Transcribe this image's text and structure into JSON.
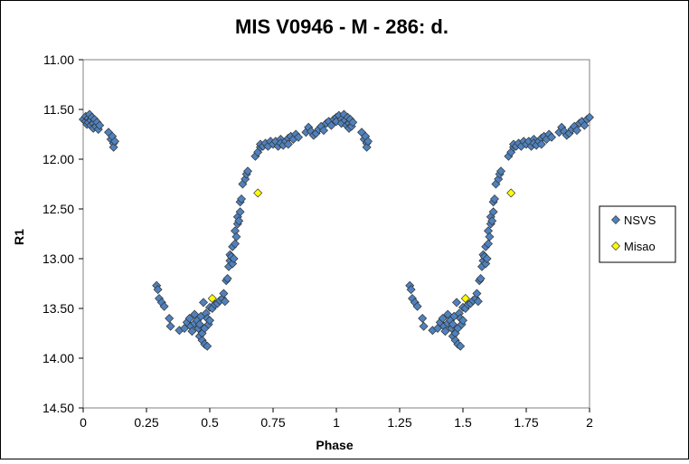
{
  "chart_data": {
    "type": "scatter",
    "title": "MIS V0946 - M - 286: d.",
    "xlabel": "Phase",
    "ylabel": "R1",
    "xlim": [
      0,
      2
    ],
    "ylim": [
      11.0,
      14.5
    ],
    "y_inverted": true,
    "x_ticks": [
      "0",
      "0.25",
      "0.5",
      "0.75",
      "1",
      "1.25",
      "1.5",
      "1.75",
      "2"
    ],
    "y_ticks": [
      "11.00",
      "11.50",
      "12.00",
      "12.50",
      "13.00",
      "13.50",
      "14.00",
      "14.50"
    ],
    "grid": false,
    "legend_position": "right",
    "colors": {
      "nsvs": "#4f81bd",
      "misao": "#ffff00",
      "frame": "#808080",
      "marker_edge": "#333333"
    },
    "series": [
      {
        "name": "NSVS",
        "points": [
          [
            0.0,
            11.6
          ],
          [
            0.01,
            11.62
          ],
          [
            0.01,
            11.57
          ],
          [
            0.015,
            11.65
          ],
          [
            0.02,
            11.59
          ],
          [
            0.02,
            11.63
          ],
          [
            0.025,
            11.55
          ],
          [
            0.03,
            11.61
          ],
          [
            0.03,
            11.66
          ],
          [
            0.035,
            11.58
          ],
          [
            0.04,
            11.64
          ],
          [
            0.04,
            11.69
          ],
          [
            0.045,
            11.6
          ],
          [
            0.05,
            11.67
          ],
          [
            0.055,
            11.63
          ],
          [
            0.06,
            11.7
          ],
          [
            0.065,
            11.66
          ],
          [
            0.1,
            11.73
          ],
          [
            0.11,
            11.8
          ],
          [
            0.115,
            11.77
          ],
          [
            0.12,
            11.84
          ],
          [
            0.12,
            11.88
          ],
          [
            0.125,
            11.82
          ],
          [
            0.29,
            13.27
          ],
          [
            0.295,
            13.31
          ],
          [
            0.3,
            13.4
          ],
          [
            0.31,
            13.44
          ],
          [
            0.32,
            13.48
          ],
          [
            0.34,
            13.6
          ],
          [
            0.345,
            13.68
          ],
          [
            0.38,
            13.72
          ],
          [
            0.4,
            13.7
          ],
          [
            0.41,
            13.64
          ],
          [
            0.42,
            13.6
          ],
          [
            0.425,
            13.68
          ],
          [
            0.43,
            13.73
          ],
          [
            0.44,
            13.65
          ],
          [
            0.44,
            13.56
          ],
          [
            0.45,
            13.62
          ],
          [
            0.455,
            13.7
          ],
          [
            0.46,
            13.66
          ],
          [
            0.46,
            13.78
          ],
          [
            0.465,
            13.58
          ],
          [
            0.47,
            13.75
          ],
          [
            0.47,
            13.82
          ],
          [
            0.475,
            13.44
          ],
          [
            0.48,
            13.7
          ],
          [
            0.48,
            13.86
          ],
          [
            0.485,
            13.55
          ],
          [
            0.49,
            13.6
          ],
          [
            0.49,
            13.88
          ],
          [
            0.495,
            13.66
          ],
          [
            0.5,
            13.49
          ],
          [
            0.5,
            13.62
          ],
          [
            0.51,
            13.5
          ],
          [
            0.52,
            13.46
          ],
          [
            0.53,
            13.45
          ],
          [
            0.54,
            13.42
          ],
          [
            0.55,
            13.4
          ],
          [
            0.555,
            13.35
          ],
          [
            0.56,
            13.43
          ],
          [
            0.565,
            13.22
          ],
          [
            0.57,
            13.2
          ],
          [
            0.575,
            13.08
          ],
          [
            0.58,
            13.02
          ],
          [
            0.58,
            12.96
          ],
          [
            0.585,
            12.98
          ],
          [
            0.59,
            13.05
          ],
          [
            0.59,
            12.88
          ],
          [
            0.595,
            13.0
          ],
          [
            0.6,
            12.85
          ],
          [
            0.6,
            12.72
          ],
          [
            0.605,
            12.78
          ],
          [
            0.61,
            12.65
          ],
          [
            0.61,
            12.58
          ],
          [
            0.615,
            12.62
          ],
          [
            0.62,
            12.53
          ],
          [
            0.62,
            12.43
          ],
          [
            0.625,
            12.4
          ],
          [
            0.63,
            12.25
          ],
          [
            0.64,
            12.2
          ],
          [
            0.645,
            12.15
          ],
          [
            0.65,
            12.12
          ],
          [
            0.68,
            11.97
          ],
          [
            0.69,
            11.93
          ],
          [
            0.7,
            11.88
          ],
          [
            0.7,
            11.85
          ],
          [
            0.71,
            11.87
          ],
          [
            0.72,
            11.84
          ],
          [
            0.73,
            11.87
          ],
          [
            0.74,
            11.82
          ],
          [
            0.75,
            11.85
          ],
          [
            0.76,
            11.82
          ],
          [
            0.77,
            11.87
          ],
          [
            0.78,
            11.8
          ],
          [
            0.78,
            11.84
          ],
          [
            0.79,
            11.86
          ],
          [
            0.8,
            11.82
          ],
          [
            0.81,
            11.79
          ],
          [
            0.81,
            11.85
          ],
          [
            0.82,
            11.77
          ],
          [
            0.83,
            11.8
          ],
          [
            0.84,
            11.75
          ],
          [
            0.85,
            11.78
          ],
          [
            0.88,
            11.73
          ],
          [
            0.89,
            11.68
          ],
          [
            0.9,
            11.72
          ],
          [
            0.91,
            11.76
          ],
          [
            0.92,
            11.74
          ],
          [
            0.93,
            11.7
          ],
          [
            0.94,
            11.67
          ],
          [
            0.95,
            11.71
          ],
          [
            0.96,
            11.64
          ],
          [
            0.97,
            11.62
          ],
          [
            0.98,
            11.66
          ],
          [
            0.99,
            11.6
          ],
          [
            1.0,
            11.58
          ],
          [
            1.0,
            11.62
          ],
          [
            1.01,
            11.56
          ],
          [
            1.02,
            11.6
          ],
          [
            1.02,
            11.64
          ],
          [
            1.03,
            11.55
          ],
          [
            1.035,
            11.61
          ],
          [
            1.04,
            11.66
          ],
          [
            1.045,
            11.58
          ],
          [
            1.05,
            11.64
          ],
          [
            1.05,
            11.69
          ],
          [
            1.055,
            11.6
          ],
          [
            1.06,
            11.67
          ],
          [
            1.065,
            11.63
          ],
          [
            1.1,
            11.73
          ],
          [
            1.11,
            11.8
          ],
          [
            1.115,
            11.77
          ],
          [
            1.12,
            11.84
          ],
          [
            1.12,
            11.88
          ],
          [
            1.125,
            11.82
          ],
          [
            1.29,
            13.27
          ],
          [
            1.295,
            13.31
          ],
          [
            1.3,
            13.4
          ],
          [
            1.31,
            13.44
          ],
          [
            1.32,
            13.48
          ],
          [
            1.34,
            13.6
          ],
          [
            1.345,
            13.68
          ],
          [
            1.38,
            13.72
          ],
          [
            1.4,
            13.7
          ],
          [
            1.41,
            13.64
          ],
          [
            1.42,
            13.6
          ],
          [
            1.425,
            13.68
          ],
          [
            1.43,
            13.73
          ],
          [
            1.44,
            13.65
          ],
          [
            1.44,
            13.56
          ],
          [
            1.45,
            13.62
          ],
          [
            1.455,
            13.7
          ],
          [
            1.46,
            13.66
          ],
          [
            1.46,
            13.78
          ],
          [
            1.465,
            13.58
          ],
          [
            1.47,
            13.75
          ],
          [
            1.47,
            13.82
          ],
          [
            1.475,
            13.44
          ],
          [
            1.48,
            13.7
          ],
          [
            1.48,
            13.86
          ],
          [
            1.485,
            13.55
          ],
          [
            1.49,
            13.6
          ],
          [
            1.49,
            13.88
          ],
          [
            1.495,
            13.66
          ],
          [
            1.5,
            13.49
          ],
          [
            1.5,
            13.62
          ],
          [
            1.51,
            13.5
          ],
          [
            1.52,
            13.46
          ],
          [
            1.53,
            13.45
          ],
          [
            1.54,
            13.42
          ],
          [
            1.55,
            13.4
          ],
          [
            1.555,
            13.35
          ],
          [
            1.56,
            13.43
          ],
          [
            1.565,
            13.22
          ],
          [
            1.57,
            13.2
          ],
          [
            1.575,
            13.08
          ],
          [
            1.58,
            13.02
          ],
          [
            1.58,
            12.96
          ],
          [
            1.585,
            12.98
          ],
          [
            1.59,
            13.05
          ],
          [
            1.59,
            12.88
          ],
          [
            1.595,
            13.0
          ],
          [
            1.6,
            12.85
          ],
          [
            1.6,
            12.72
          ],
          [
            1.605,
            12.78
          ],
          [
            1.61,
            12.65
          ],
          [
            1.61,
            12.58
          ],
          [
            1.615,
            12.62
          ],
          [
            1.62,
            12.53
          ],
          [
            1.62,
            12.43
          ],
          [
            1.625,
            12.4
          ],
          [
            1.63,
            12.25
          ],
          [
            1.64,
            12.2
          ],
          [
            1.645,
            12.15
          ],
          [
            1.65,
            12.12
          ],
          [
            1.68,
            11.97
          ],
          [
            1.69,
            11.93
          ],
          [
            1.7,
            11.88
          ],
          [
            1.7,
            11.85
          ],
          [
            1.71,
            11.87
          ],
          [
            1.72,
            11.84
          ],
          [
            1.73,
            11.87
          ],
          [
            1.74,
            11.82
          ],
          [
            1.75,
            11.85
          ],
          [
            1.76,
            11.82
          ],
          [
            1.77,
            11.87
          ],
          [
            1.78,
            11.8
          ],
          [
            1.78,
            11.84
          ],
          [
            1.79,
            11.86
          ],
          [
            1.8,
            11.82
          ],
          [
            1.81,
            11.79
          ],
          [
            1.81,
            11.85
          ],
          [
            1.82,
            11.77
          ],
          [
            1.83,
            11.8
          ],
          [
            1.84,
            11.75
          ],
          [
            1.85,
            11.78
          ],
          [
            1.88,
            11.73
          ],
          [
            1.89,
            11.68
          ],
          [
            1.9,
            11.72
          ],
          [
            1.91,
            11.76
          ],
          [
            1.92,
            11.74
          ],
          [
            1.93,
            11.7
          ],
          [
            1.94,
            11.67
          ],
          [
            1.95,
            11.71
          ],
          [
            1.96,
            11.64
          ],
          [
            1.97,
            11.62
          ],
          [
            1.98,
            11.66
          ],
          [
            1.99,
            11.6
          ],
          [
            2.0,
            11.58
          ]
        ]
      },
      {
        "name": "Misao",
        "points": [
          [
            0.51,
            13.4
          ],
          [
            0.69,
            12.34
          ],
          [
            1.51,
            13.4
          ],
          [
            1.69,
            12.34
          ]
        ]
      }
    ]
  }
}
